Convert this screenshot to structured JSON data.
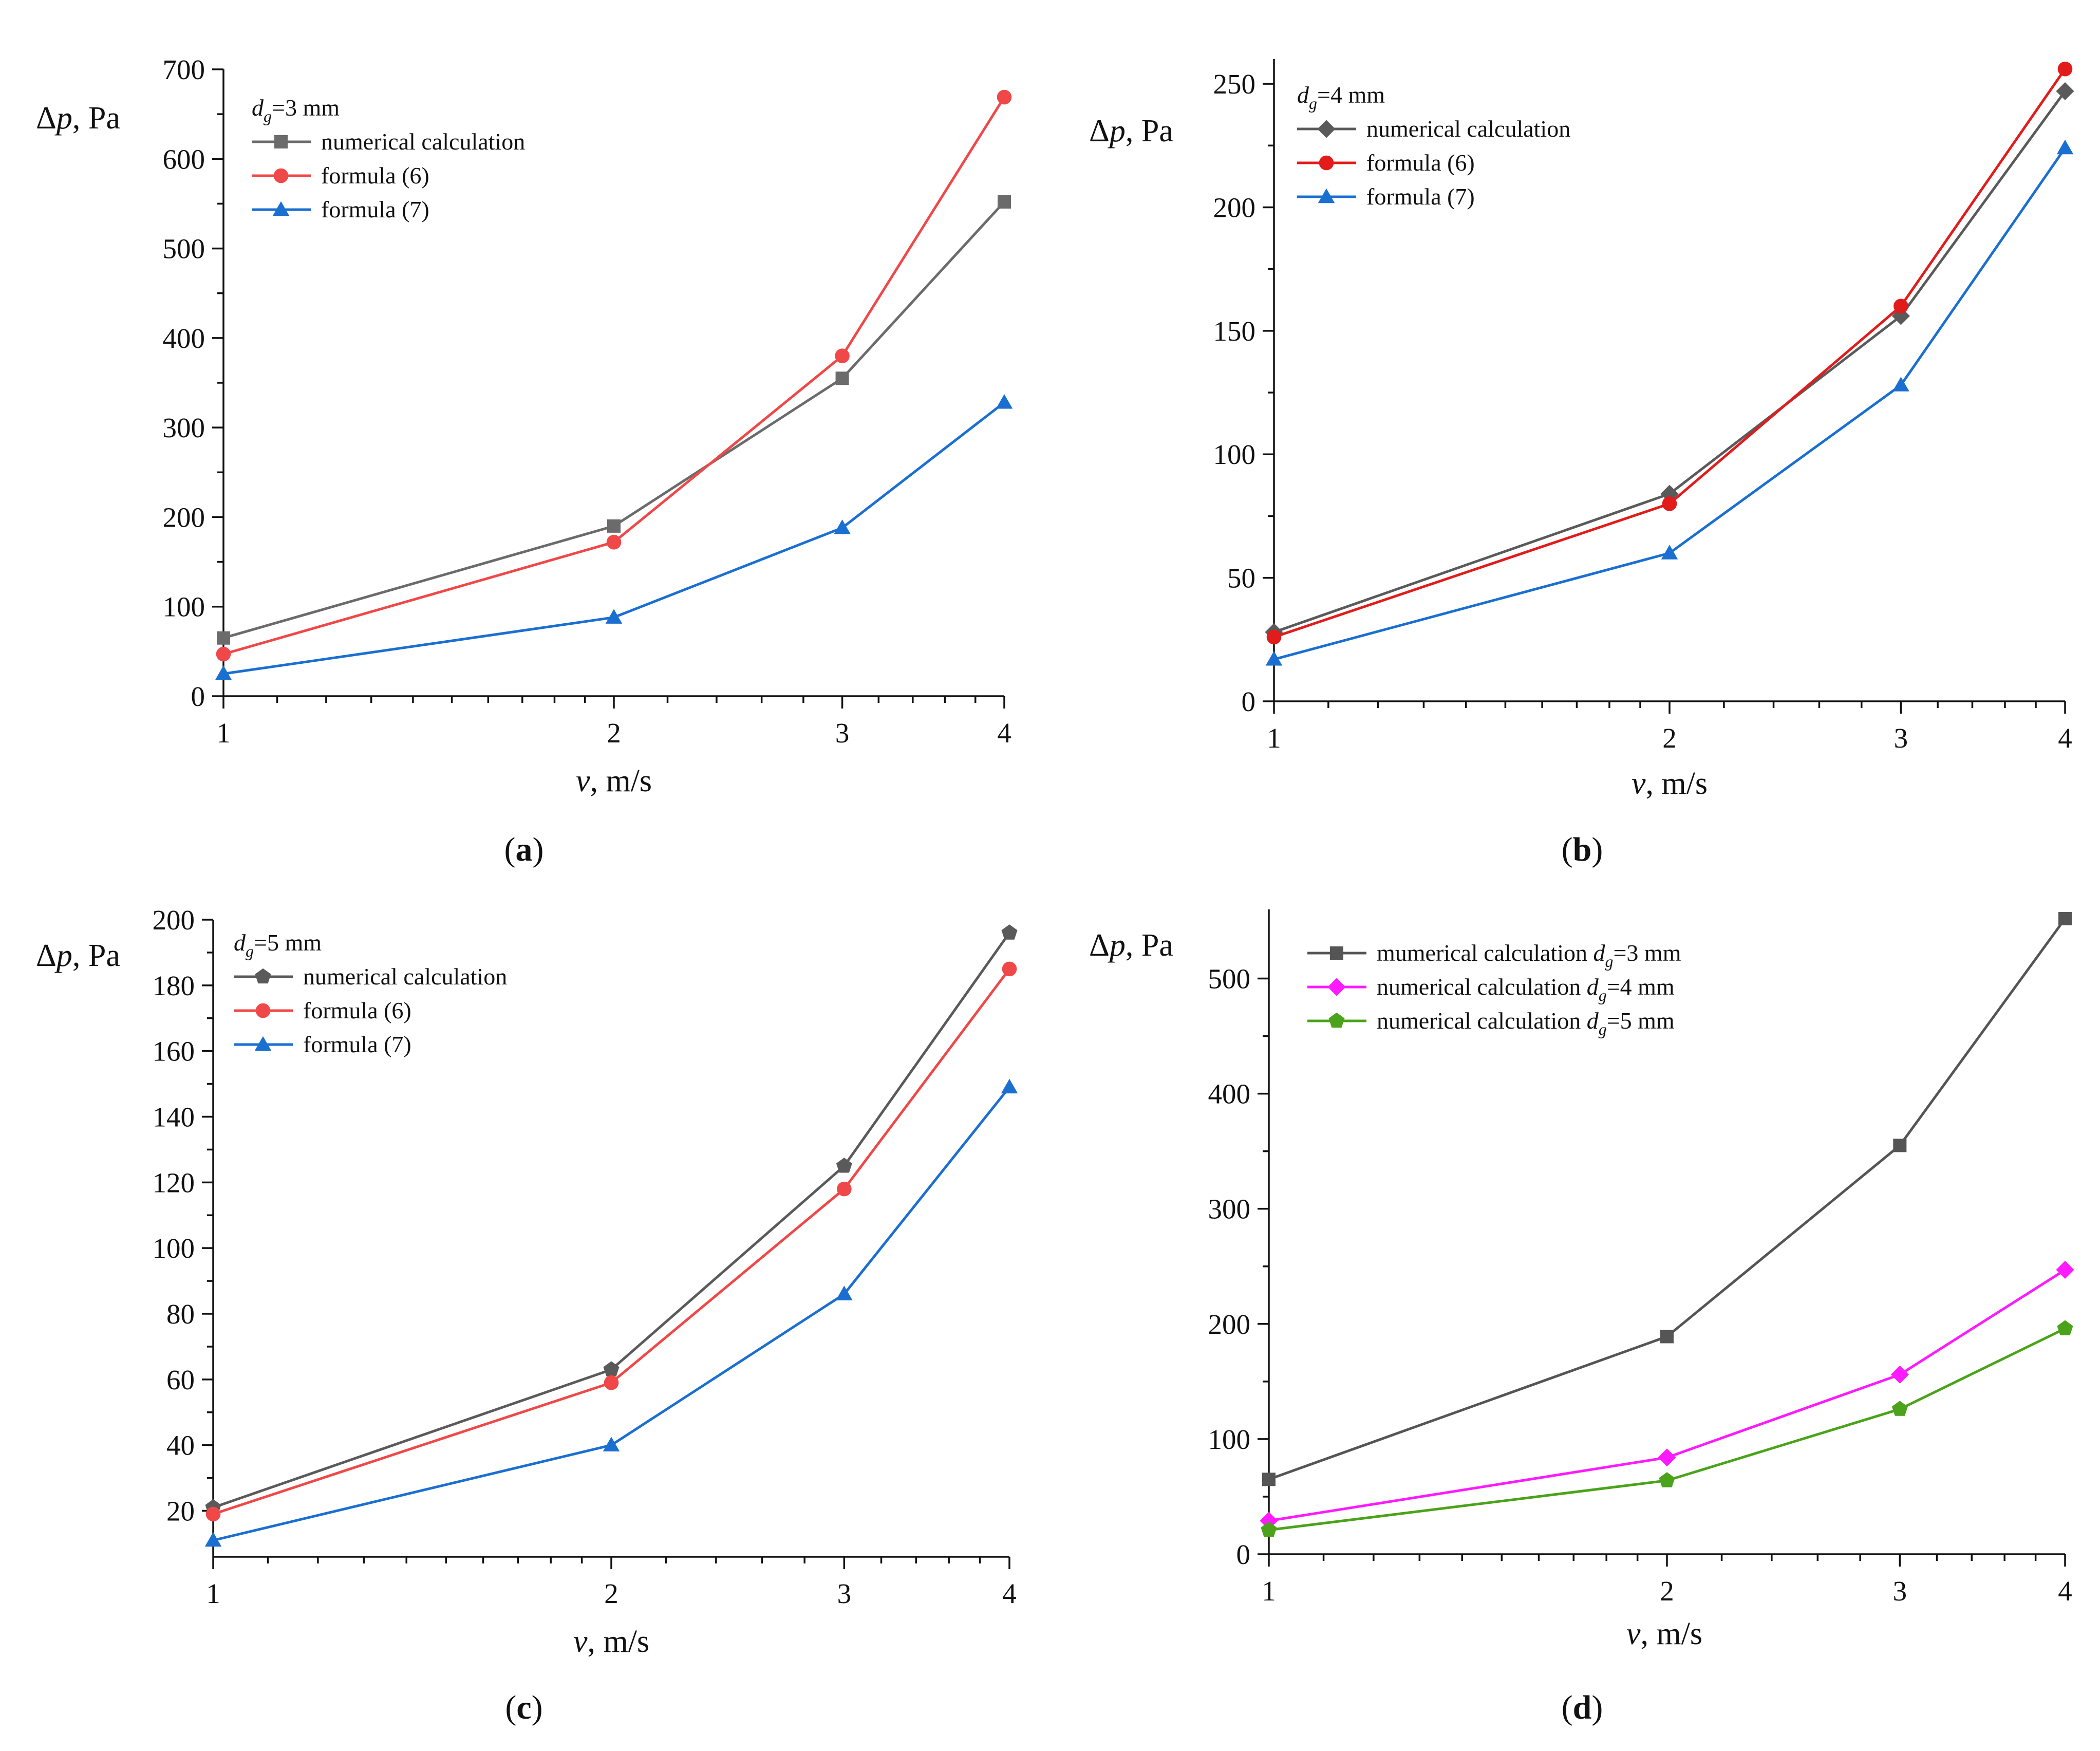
{
  "chart_data": [
    {
      "panel": "a",
      "type": "line",
      "xscale": "log",
      "x": [
        1,
        2,
        3,
        4
      ],
      "xlim": [
        1,
        4
      ],
      "ylim": [
        0,
        700
      ],
      "yticks": [
        0,
        100,
        200,
        300,
        400,
        500,
        600,
        700
      ],
      "xticks": [
        1,
        2,
        3,
        4
      ],
      "ylabel": {
        "symbol": "Δp",
        "unit": ", Pa"
      },
      "xlabel": {
        "symbol": "v",
        "unit": ", m/s"
      },
      "legend_title": {
        "sym": "d",
        "sub": "g",
        "rest": "=3 mm"
      },
      "legend_position": "top-left",
      "series": [
        {
          "name": "numerical calculation",
          "color": "#6b6b6b",
          "marker": "square",
          "values": [
            65,
            190,
            355,
            552
          ]
        },
        {
          "name": "formula (6)",
          "color": "#f04848",
          "marker": "circle",
          "values": [
            47,
            172,
            380,
            669
          ]
        },
        {
          "name": "formula (7)",
          "color": "#1a6fd1",
          "marker": "triangle",
          "values": [
            25,
            88,
            188,
            328
          ]
        }
      ],
      "caption": "a"
    },
    {
      "panel": "b",
      "type": "line",
      "xscale": "log",
      "x": [
        1,
        2,
        3,
        4
      ],
      "xlim": [
        1,
        4
      ],
      "ylim": [
        0,
        260
      ],
      "yticks": [
        0,
        50,
        100,
        150,
        200,
        250
      ],
      "xticks": [
        1,
        2,
        3,
        4
      ],
      "ylabel": {
        "symbol": "Δp",
        "unit": ", Pa"
      },
      "xlabel": {
        "symbol": "v",
        "unit": ", m/s"
      },
      "legend_title": {
        "sym": "d",
        "sub": "g",
        "rest": "=4 mm"
      },
      "legend_position": "top-left",
      "series": [
        {
          "name": "numerical calculation",
          "color": "#5a5a5a",
          "marker": "diamond",
          "values": [
            28,
            84,
            156,
            247
          ]
        },
        {
          "name": "formula (6)",
          "color": "#e21b1b",
          "marker": "circle",
          "values": [
            26,
            80,
            160,
            256
          ]
        },
        {
          "name": "formula (7)",
          "color": "#1a6fd1",
          "marker": "triangle",
          "values": [
            17,
            60,
            128,
            224
          ]
        }
      ],
      "caption": "b"
    },
    {
      "panel": "c",
      "type": "line",
      "xscale": "log",
      "x": [
        1,
        2,
        3,
        4
      ],
      "xlim": [
        1,
        4
      ],
      "ylim": [
        6,
        200
      ],
      "yticks": [
        20,
        40,
        60,
        80,
        100,
        120,
        140,
        160,
        180,
        200
      ],
      "xticks": [
        1,
        2,
        3,
        4
      ],
      "ylabel": {
        "symbol": "Δp",
        "unit": ", Pa"
      },
      "xlabel": {
        "symbol": "v",
        "unit": ", m/s"
      },
      "legend_title": {
        "sym": "d",
        "sub": "g",
        "rest": "=5 mm"
      },
      "legend_position": "top-left",
      "series": [
        {
          "name": "numerical calculation",
          "color": "#5a5a5a",
          "marker": "pentagon",
          "values": [
            21,
            63,
            125,
            196
          ]
        },
        {
          "name": "formula (6)",
          "color": "#f04848",
          "marker": "circle",
          "values": [
            19,
            59,
            118,
            185
          ]
        },
        {
          "name": "formula (7)",
          "color": "#1a6fd1",
          "marker": "triangle",
          "values": [
            11,
            40,
            86,
            149
          ]
        }
      ],
      "caption": "c"
    },
    {
      "panel": "d",
      "type": "line",
      "xscale": "log",
      "x": [
        1,
        2,
        3,
        4
      ],
      "xlim": [
        1,
        4
      ],
      "ylim": [
        0,
        560
      ],
      "yticks": [
        0,
        100,
        200,
        300,
        400,
        500
      ],
      "xticks": [
        1,
        2,
        3,
        4
      ],
      "ylabel": {
        "symbol": "Δp",
        "unit": ", Pa"
      },
      "xlabel": {
        "symbol": "v",
        "unit": ", m/s"
      },
      "legend_position": "top-left",
      "series": [
        {
          "name": "mumerical calculation",
          "name_sym": "d",
          "name_sub": "g",
          "name_rest": "=3 mm",
          "color": "#555555",
          "marker": "square",
          "values": [
            65,
            189,
            355,
            552
          ]
        },
        {
          "name": "numerical calculation",
          "name_sym": "d",
          "name_sub": "g",
          "name_rest": "=4 mm",
          "color": "#ff1aff",
          "marker": "diamond",
          "values": [
            29,
            84,
            156,
            247
          ]
        },
        {
          "name": "numerical calculation",
          "name_sym": "d",
          "name_sub": "g",
          "name_rest": "=5 mm",
          "color": "#4aa31a",
          "marker": "pentagon",
          "values": [
            21,
            64,
            126,
            196
          ]
        }
      ],
      "caption": "d"
    }
  ]
}
